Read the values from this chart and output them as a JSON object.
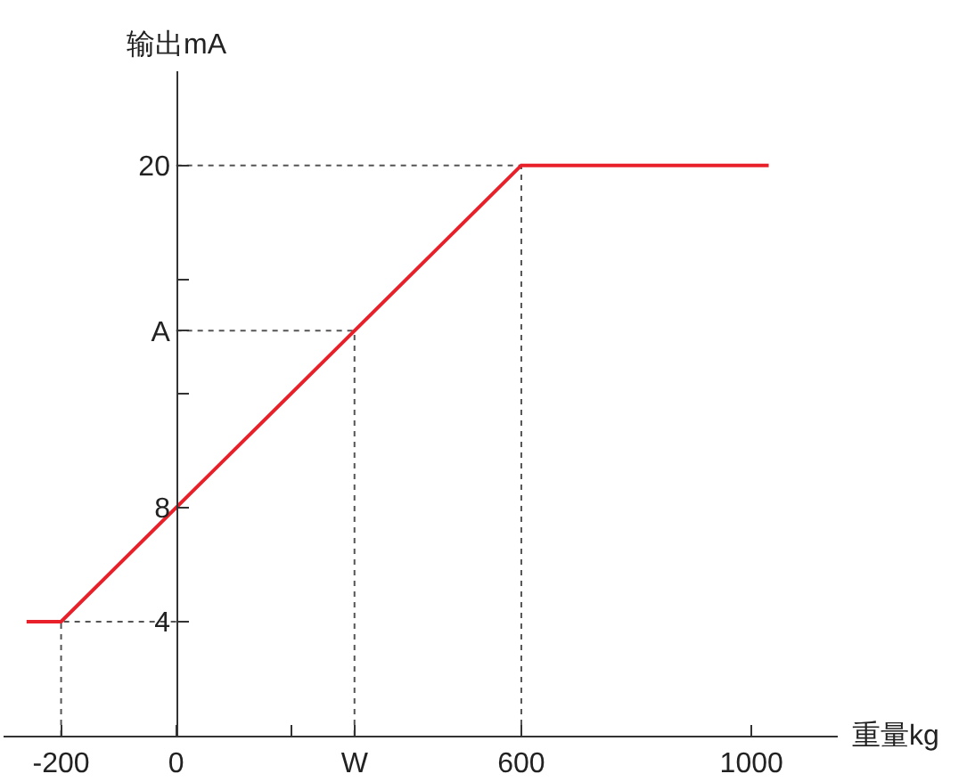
{
  "chart_data": {
    "type": "line",
    "xlabel": "重量kg",
    "ylabel": "输出mA",
    "series": [
      {
        "x": [
          -260,
          -200,
          600,
          1030
        ],
        "values": [
          4,
          4,
          20,
          20
        ],
        "color": "#e8202a"
      }
    ],
    "xlim": [
      -300,
      1150
    ],
    "ylim": [
      0,
      23.3
    ],
    "xticks": [
      -200,
      0,
      {
        "value": 200,
        "label": null
      },
      {
        "value": 310,
        "label": "W"
      },
      600,
      1000
    ],
    "yticks": [
      4,
      8,
      {
        "value": 12,
        "label": null
      },
      {
        "value": 14.2,
        "label": "A"
      },
      {
        "value": 16,
        "label": null
      },
      20
    ],
    "ref_lines": [
      {
        "axis": "y",
        "value": 20,
        "color": "#555555",
        "line_style": "dotted"
      },
      {
        "axis": "y",
        "value": 14.2,
        "color": "#555555",
        "line_style": "dotted"
      },
      {
        "axis": "y",
        "value": 4,
        "color": "#555555",
        "line_style": "dotted"
      },
      {
        "axis": "x",
        "value": 600,
        "color": "#555555",
        "line_style": "dotted"
      },
      {
        "axis": "x",
        "value": 310,
        "color": "#555555",
        "line_style": "dotted"
      },
      {
        "axis": "x",
        "value": -200,
        "color": "#555555",
        "line_style": "dotted"
      }
    ],
    "grid": false,
    "marker": "none",
    "line_style": "solid"
  }
}
